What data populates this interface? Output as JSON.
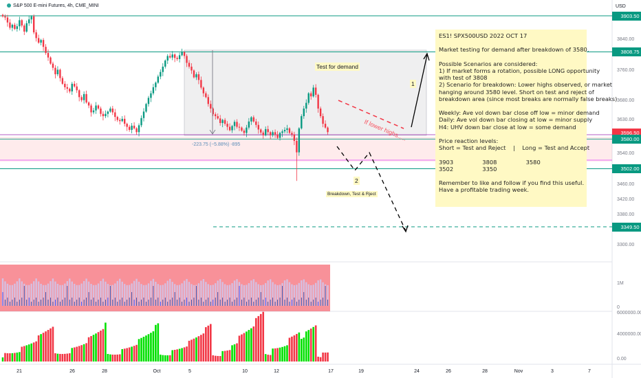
{
  "header": {
    "symbol_label": "S&P 500 E-mini Futures, 4h, CME_MINI",
    "currency": "USD"
  },
  "chart_data": {
    "type": "candlestick",
    "timeframe": "4h",
    "price_axis": {
      "range": [
        3262.5,
        3905
      ],
      "ticks": [
        3840,
        3760,
        3680,
        3630,
        3540,
        3460,
        3420,
        3380,
        3300
      ]
    },
    "time_axis_labels": [
      "21",
      "26",
      "28",
      "Oct",
      "5",
      "10",
      "12",
      "17",
      "19",
      "24",
      "26",
      "28",
      "Nov",
      "3",
      "7"
    ],
    "price_labels": [
      {
        "value": "3903.50",
        "color": "#089981"
      },
      {
        "value": "3808.75",
        "color": "#089981"
      },
      {
        "value": "3596.50",
        "color": "#f23645"
      },
      {
        "value": "3580.00",
        "color": "#089981"
      },
      {
        "value": "3502.00",
        "color": "#089981"
      },
      {
        "value": "3349.50",
        "color": "#089981"
      }
    ],
    "horizontal_levels": [
      3903.5,
      3808.75,
      3580,
      3502,
      3349.5
    ],
    "closes": [
      3902,
      3899,
      3886,
      3872,
      3880,
      3869,
      3876,
      3892,
      3878,
      3862,
      3884,
      3894,
      3902,
      3860,
      3845,
      3833,
      3840,
      3822,
      3806,
      3794,
      3778,
      3767,
      3750,
      3762,
      3740,
      3725,
      3716,
      3712,
      3705,
      3725,
      3718,
      3708,
      3690,
      3682,
      3698,
      3676,
      3668,
      3650,
      3655,
      3668,
      3660,
      3646,
      3640,
      3646,
      3652,
      3660,
      3650,
      3638,
      3630,
      3627,
      3633,
      3620,
      3612,
      3604,
      3615,
      3608,
      3598,
      3616,
      3635,
      3652,
      3672,
      3688,
      3700,
      3716,
      3728,
      3744,
      3756,
      3770,
      3786,
      3798,
      3794,
      3802,
      3793,
      3790,
      3800,
      3808,
      3798,
      3780,
      3770,
      3760,
      3742,
      3750,
      3735,
      3715,
      3700,
      3690,
      3672,
      3660,
      3645,
      3640,
      3634,
      3622,
      3630,
      3620,
      3612,
      3603,
      3614,
      3625,
      3612,
      3610,
      3602,
      3596,
      3610,
      3626,
      3637,
      3626,
      3617,
      3605,
      3597,
      3590,
      3606,
      3598,
      3590,
      3598,
      3592,
      3583,
      3596,
      3600,
      3604,
      3608,
      3596,
      3592,
      3575,
      3545,
      3608,
      3640,
      3660,
      3675,
      3700,
      3692,
      3715,
      3696,
      3660,
      3640,
      3620,
      3610,
      3598
    ],
    "volume_y_ticks": [
      "6000000.00",
      "4000000.00",
      "0.00"
    ],
    "indicator_y_ticks": [
      "1M",
      "0"
    ],
    "measure_label": "-223.75 (−5.88%) -895",
    "drawings": [
      {
        "id": "arrow-up",
        "label": "1"
      },
      {
        "id": "arrow-down",
        "label": "2"
      }
    ]
  },
  "annotations": {
    "test_for_demand": "Test for demand",
    "if_lower_highs": "If lower highs.....",
    "breakdown": "Breakdown, Test & Rject",
    "label_1": "1",
    "label_2": "2"
  },
  "note": {
    "lines": [
      "ES1! SPX500USD 2022 OCT 17",
      "",
      "Market testing for demand after breakdown of 3580.",
      "",
      "Possible Scenarios are considered:",
      "1) If market forms a rotation, possible LONG opportunity",
      "with test of 3808",
      "2) Scenario for breakdown: Lower highs observed, or market",
      "hanging around 3580 level. Short on test and reject of",
      "breakdown area (since most breaks are normally false breaks)",
      "",
      "Weekly: Ave vol down bar close off low = minor demand",
      "Daily: Ave vol down bar closing at low = minor supply",
      "H4: UHV down bar close at low = some demand",
      "",
      "Price reaction levels:",
      "Short = Test and Reject    |    Long = Test and Accept",
      "",
      "3903                3808                3580",
      "3502                3350",
      "",
      "Remember to like and follow if you find this useful.",
      "Have a profitable trading week."
    ]
  },
  "colors": {
    "up": "#089981",
    "down": "#f23645",
    "level": "#089981",
    "note_bg": "#fff9c4"
  }
}
